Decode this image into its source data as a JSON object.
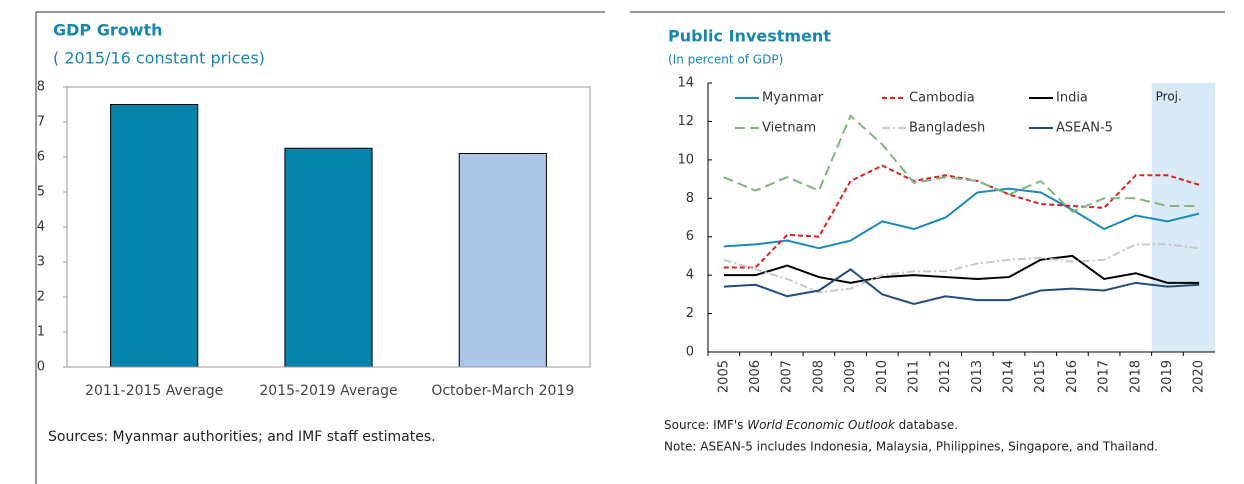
{
  "chart_data": [
    {
      "type": "bar",
      "title": "GDP Growth",
      "subtitle": "( 2015/16 constant prices)",
      "categories": [
        "2011-2015 Average",
        "2015-2019 Average",
        "October-March 2019"
      ],
      "values": [
        7.5,
        6.25,
        6.1
      ],
      "colors": [
        "#0584ab",
        "#0584ab",
        "#adc6e8"
      ],
      "ylim": [
        0,
        8
      ],
      "yticks": [
        0,
        1,
        2,
        3,
        4,
        5,
        6,
        7,
        8
      ],
      "source": "Sources: Myanmar authorities; and IMF staff estimates."
    },
    {
      "type": "line",
      "title": "Public Investment",
      "subtitle": "(In percent of GDP)",
      "x": [
        2005,
        2006,
        2007,
        2008,
        2009,
        2010,
        2011,
        2012,
        2013,
        2014,
        2015,
        2016,
        2017,
        2018,
        2019,
        2020
      ],
      "series": [
        {
          "name": "Myanmar",
          "color": "#1a8ab8",
          "dash": "solid",
          "values": [
            5.5,
            5.6,
            5.8,
            5.4,
            5.8,
            6.8,
            6.4,
            7.0,
            8.3,
            8.5,
            8.3,
            7.4,
            6.4,
            7.1,
            6.8,
            7.2
          ]
        },
        {
          "name": "Cambodia",
          "color": "#e02020",
          "dash": "dashed",
          "values": [
            4.4,
            4.4,
            6.1,
            6.0,
            8.9,
            9.7,
            8.9,
            9.2,
            8.9,
            8.2,
            7.7,
            7.6,
            7.5,
            9.2,
            9.2,
            8.7
          ]
        },
        {
          "name": "India",
          "color": "#000000",
          "dash": "solid",
          "values": [
            4.0,
            4.0,
            4.5,
            3.9,
            3.6,
            3.9,
            4.0,
            3.9,
            3.8,
            3.9,
            4.8,
            5.0,
            3.8,
            4.1,
            3.6,
            3.6
          ]
        },
        {
          "name": "Vietnam",
          "color": "#7fb87a",
          "dash": "longdash",
          "values": [
            9.1,
            8.4,
            9.1,
            8.4,
            12.3,
            10.8,
            8.8,
            9.1,
            8.9,
            8.2,
            8.9,
            7.3,
            8.0,
            8.0,
            7.6,
            7.6
          ]
        },
        {
          "name": "Bangladesh",
          "color": "#c8c8c8",
          "dash": "dashdot",
          "values": [
            4.8,
            4.3,
            3.8,
            3.1,
            3.3,
            4.0,
            4.2,
            4.2,
            4.6,
            4.8,
            4.9,
            4.7,
            4.8,
            5.6,
            5.6,
            5.4
          ]
        },
        {
          "name": "ASEAN-5",
          "color": "#1f4e79",
          "dash": "solid",
          "values": [
            3.4,
            3.5,
            2.9,
            3.2,
            4.3,
            3.0,
            2.5,
            2.9,
            2.7,
            2.7,
            3.2,
            3.3,
            3.2,
            3.6,
            3.4,
            3.5
          ]
        }
      ],
      "projection_from": 2019,
      "projection_label": "Proj.",
      "ylim": [
        0,
        14
      ],
      "yticks": [
        0,
        2,
        4,
        6,
        8,
        10,
        12,
        14
      ],
      "source": [
        "Source: IMF's ",
        "World Economic Outlook",
        " database."
      ],
      "note": "Note: ASEAN-5 includes Indonesia, Malaysia, Philippines, Singapore, and Thailand."
    }
  ]
}
